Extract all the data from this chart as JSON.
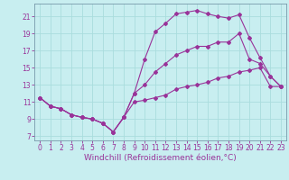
{
  "xlabel": "Windchill (Refroidissement éolien,°C)",
  "background_color": "#c8eef0",
  "line_color": "#993399",
  "grid_color": "#b0dde0",
  "xlim": [
    -0.5,
    23.5
  ],
  "ylim": [
    6.5,
    22.5
  ],
  "xticks": [
    0,
    1,
    2,
    3,
    4,
    5,
    6,
    7,
    8,
    9,
    10,
    11,
    12,
    13,
    14,
    15,
    16,
    17,
    18,
    19,
    20,
    21,
    22,
    23
  ],
  "yticks": [
    7,
    9,
    11,
    13,
    15,
    17,
    19,
    21
  ],
  "line1_x": [
    0,
    1,
    2,
    3,
    4,
    5,
    6,
    7,
    8,
    9,
    10,
    11,
    12,
    13,
    14,
    15,
    16,
    17,
    18,
    19,
    20,
    21,
    22,
    23
  ],
  "line1_y": [
    11.5,
    10.5,
    10.2,
    9.5,
    9.2,
    9.0,
    8.5,
    7.5,
    9.2,
    12.0,
    16.0,
    19.2,
    20.2,
    21.3,
    21.5,
    21.7,
    21.3,
    21.0,
    20.8,
    21.2,
    18.5,
    16.2,
    14.0,
    12.8
  ],
  "line2_x": [
    0,
    1,
    2,
    3,
    4,
    5,
    6,
    7,
    8,
    9,
    10,
    11,
    12,
    13,
    14,
    15,
    16,
    17,
    18,
    19,
    20,
    21,
    22,
    23
  ],
  "line2_y": [
    11.5,
    10.5,
    10.2,
    9.5,
    9.2,
    9.0,
    8.5,
    7.5,
    9.2,
    12.0,
    13.0,
    14.5,
    15.5,
    16.5,
    17.0,
    17.5,
    17.5,
    18.0,
    18.0,
    19.0,
    16.0,
    15.5,
    14.0,
    12.8
  ],
  "line3_x": [
    0,
    1,
    2,
    3,
    4,
    5,
    6,
    7,
    8,
    9,
    10,
    11,
    12,
    13,
    14,
    15,
    16,
    17,
    18,
    19,
    20,
    21,
    22,
    23
  ],
  "line3_y": [
    11.5,
    10.5,
    10.2,
    9.5,
    9.2,
    9.0,
    8.5,
    7.5,
    9.2,
    11.0,
    11.2,
    11.5,
    11.8,
    12.5,
    12.8,
    13.0,
    13.3,
    13.8,
    14.0,
    14.5,
    14.7,
    15.0,
    12.8,
    12.8
  ],
  "tick_fontsize": 5.5,
  "label_fontsize": 6.5,
  "marker": "D",
  "marker_size": 2.0,
  "line_width": 0.8
}
